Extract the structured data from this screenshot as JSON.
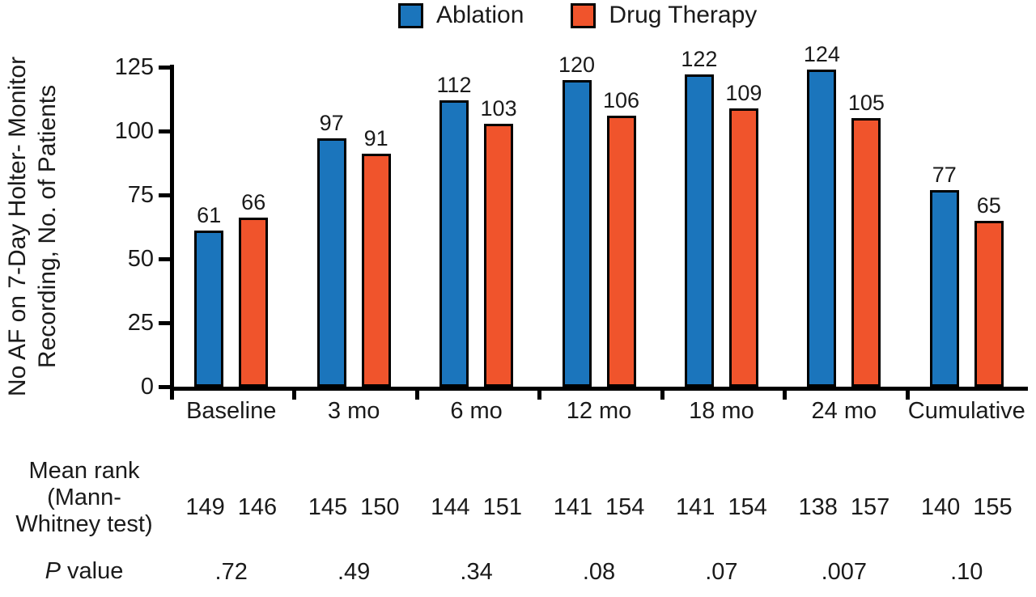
{
  "chart_data": {
    "type": "bar",
    "categories": [
      "Baseline",
      "3 mo",
      "6 mo",
      "12 mo",
      "18 mo",
      "24 mo",
      "Cumulative"
    ],
    "series": [
      {
        "name": "Ablation",
        "color": "#1B75BC",
        "values": [
          61,
          97,
          112,
          120,
          122,
          124,
          77
        ]
      },
      {
        "name": "Drug Therapy",
        "color": "#F0542C",
        "values": [
          66,
          91,
          103,
          106,
          109,
          105,
          65
        ]
      }
    ],
    "ylabel": "No AF on 7-Day Holter- Monitor Recording, No. of Patients",
    "ylabel_lines": [
      "No AF on 7-Day Holter- Monitor",
      "Recording, No. of Patients"
    ],
    "xlabel": "",
    "title": "",
    "yticks": [
      0,
      25,
      50,
      75,
      100,
      125
    ],
    "ylim": [
      0,
      125
    ],
    "grid": false,
    "legend_position": "top",
    "value_labels": true,
    "stats": {
      "mean_rank_label_lines": [
        "Mean rank",
        "(Mann-",
        "Whitney test)"
      ],
      "mean_rank": [
        [
          149,
          146
        ],
        [
          145,
          150
        ],
        [
          144,
          151
        ],
        [
          141,
          154
        ],
        [
          141,
          154
        ],
        [
          138,
          157
        ],
        [
          140,
          155
        ]
      ],
      "p_value_label_italic": "P",
      "p_value_label_rest": "value",
      "p_values": [
        ".72",
        ".49",
        ".34",
        ".08",
        ".07",
        ".007",
        ".10"
      ]
    }
  }
}
